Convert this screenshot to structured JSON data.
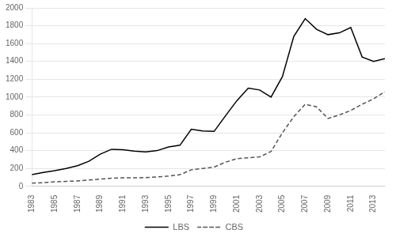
{
  "chart_data": {
    "type": "line",
    "x": [
      1983,
      1984,
      1985,
      1986,
      1987,
      1988,
      1989,
      1990,
      1991,
      1992,
      1993,
      1994,
      1995,
      1996,
      1997,
      1998,
      1999,
      2000,
      2001,
      2002,
      2003,
      2004,
      2005,
      2006,
      2007,
      2008,
      2009,
      2010,
      2011,
      2012,
      2013,
      2014
    ],
    "series": [
      {
        "name": "LBS",
        "color": "#000000",
        "line_style": "solid",
        "values": [
          130,
          155,
          175,
          200,
          230,
          280,
          360,
          415,
          410,
          395,
          385,
          400,
          440,
          460,
          640,
          620,
          615,
          790,
          960,
          1100,
          1080,
          1000,
          1230,
          1680,
          1880,
          1760,
          1700,
          1720,
          1780,
          1450,
          1400,
          1430
        ]
      },
      {
        "name": "CBS",
        "color": "#555555",
        "line_style": "dashed",
        "values": [
          35,
          40,
          50,
          55,
          60,
          70,
          80,
          90,
          95,
          95,
          98,
          105,
          115,
          130,
          185,
          200,
          215,
          270,
          310,
          320,
          330,
          390,
          600,
          780,
          920,
          890,
          760,
          800,
          850,
          920,
          980,
          1060
        ]
      }
    ],
    "xlim": [
      1983,
      2014
    ],
    "ylim": [
      0,
      2000
    ],
    "xticks": [
      1983,
      1985,
      1987,
      1989,
      1991,
      1993,
      1995,
      1997,
      1999,
      2001,
      2003,
      2005,
      2007,
      2009,
      2011,
      2013
    ],
    "yticks": [
      0,
      200,
      400,
      600,
      800,
      1000,
      1200,
      1400,
      1600,
      1800,
      2000
    ],
    "grid": "y",
    "legend": "bottom"
  }
}
